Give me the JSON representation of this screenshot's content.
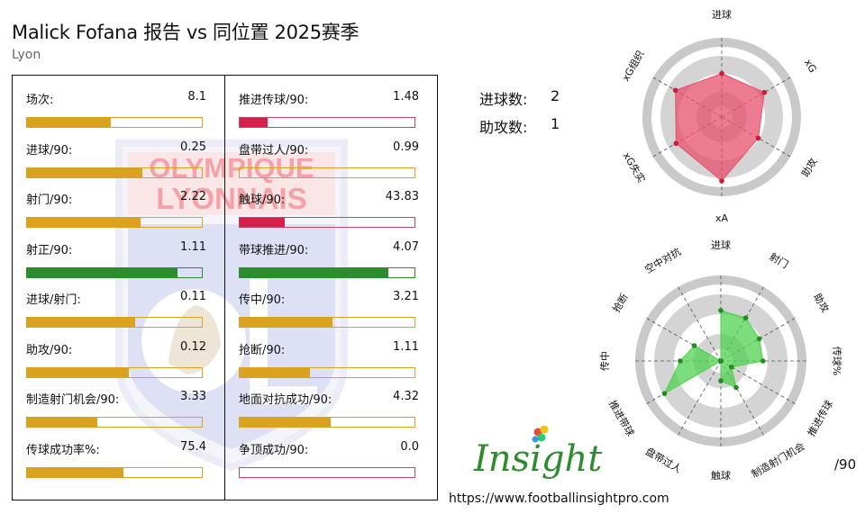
{
  "header": {
    "title": "Malick Fofana 报告 vs 同位置 2025赛季",
    "subtitle": "Lyon"
  },
  "crest": {
    "text_line1": "OLYMPIQUE",
    "text_line2": "LYONNAIS",
    "colors": {
      "red": "#e8313f",
      "blue": "#2a3fb8"
    }
  },
  "colors": {
    "bar_border_default": "#d9a320",
    "bar_fill_gold": "#d9a320",
    "bar_fill_red": "#d61f4a",
    "bar_fill_green": "#2e8b2e",
    "bar_border_red": "#c24766",
    "bar_border_green": "#2e8b2e",
    "radar_top_fill": "#e7506b",
    "radar_top_point": "#cc1d36",
    "radar_bottom_fill": "#4fd14f",
    "radar_bottom_point": "#1e8f1e",
    "ring_gray": "#cccccc"
  },
  "summary": {
    "goals_label": "进球数:",
    "goals_value": "2",
    "assists_label": "助攻数:",
    "assists_value": "1"
  },
  "stats_left": [
    {
      "label": "场次:",
      "value": "8.1",
      "percentile": 0.48,
      "color": "gold"
    },
    {
      "label": "进球/90:",
      "value": "0.25",
      "percentile": 0.66,
      "color": "gold"
    },
    {
      "label": "射门/90:",
      "value": "2.22",
      "percentile": 0.65,
      "color": "gold"
    },
    {
      "label": "射正/90:",
      "value": "1.11",
      "percentile": 0.86,
      "color": "green"
    },
    {
      "label": "进球/射门:",
      "value": "0.11",
      "percentile": 0.62,
      "color": "gold"
    },
    {
      "label": "助攻/90:",
      "value": "0.12",
      "percentile": 0.58,
      "color": "gold"
    },
    {
      "label": "制造射门机会/90:",
      "value": "3.33",
      "percentile": 0.4,
      "color": "gold"
    },
    {
      "label": "传球成功率%:",
      "value": "75.4",
      "percentile": 0.55,
      "color": "gold"
    }
  ],
  "stats_right": [
    {
      "label": "推进传球/90:",
      "value": "1.48",
      "percentile": 0.16,
      "color": "red"
    },
    {
      "label": "盘带过人/90:",
      "value": "0.99",
      "percentile": 0.0,
      "color": "gold"
    },
    {
      "label": "触球/90:",
      "value": "43.83",
      "percentile": 0.26,
      "color": "red"
    },
    {
      "label": "带球推进/90:",
      "value": "4.07",
      "percentile": 0.85,
      "color": "green"
    },
    {
      "label": "传中/90:",
      "value": "3.21",
      "percentile": 0.53,
      "color": "gold"
    },
    {
      "label": "抢断/90:",
      "value": "1.11",
      "percentile": 0.4,
      "color": "gold"
    },
    {
      "label": "地面对抗成功/90:",
      "value": "4.32",
      "percentile": 0.52,
      "color": "gold"
    },
    {
      "label": "争顶成功/90:",
      "value": "0.0",
      "percentile": 0.0,
      "color": "red"
    }
  ],
  "chart_data": [
    {
      "type": "radar",
      "axes": [
        "进球",
        "xG",
        "助攻",
        "xA",
        "xG失实",
        "xG组织"
      ],
      "values": [
        0.62,
        0.7,
        0.6,
        0.91,
        0.75,
        0.76
      ],
      "rlim": [
        0,
        1
      ]
    },
    {
      "type": "radar",
      "axes": [
        "进球",
        "射门",
        "助攻",
        "传球%",
        "推进传球",
        "制造射门机会",
        "触球",
        "盘带过人",
        "推进带球",
        "传中",
        "抢断",
        "空中对抗"
      ],
      "values": [
        0.66,
        0.65,
        0.58,
        0.55,
        0.16,
        0.4,
        0.26,
        0.0,
        0.85,
        0.53,
        0.4,
        0.0
      ],
      "rlim": [
        0,
        1
      ]
    }
  ],
  "branding": {
    "logo_text": "Insight",
    "url": "https://www.footballinsightpro.com",
    "per90_note": "/90"
  }
}
